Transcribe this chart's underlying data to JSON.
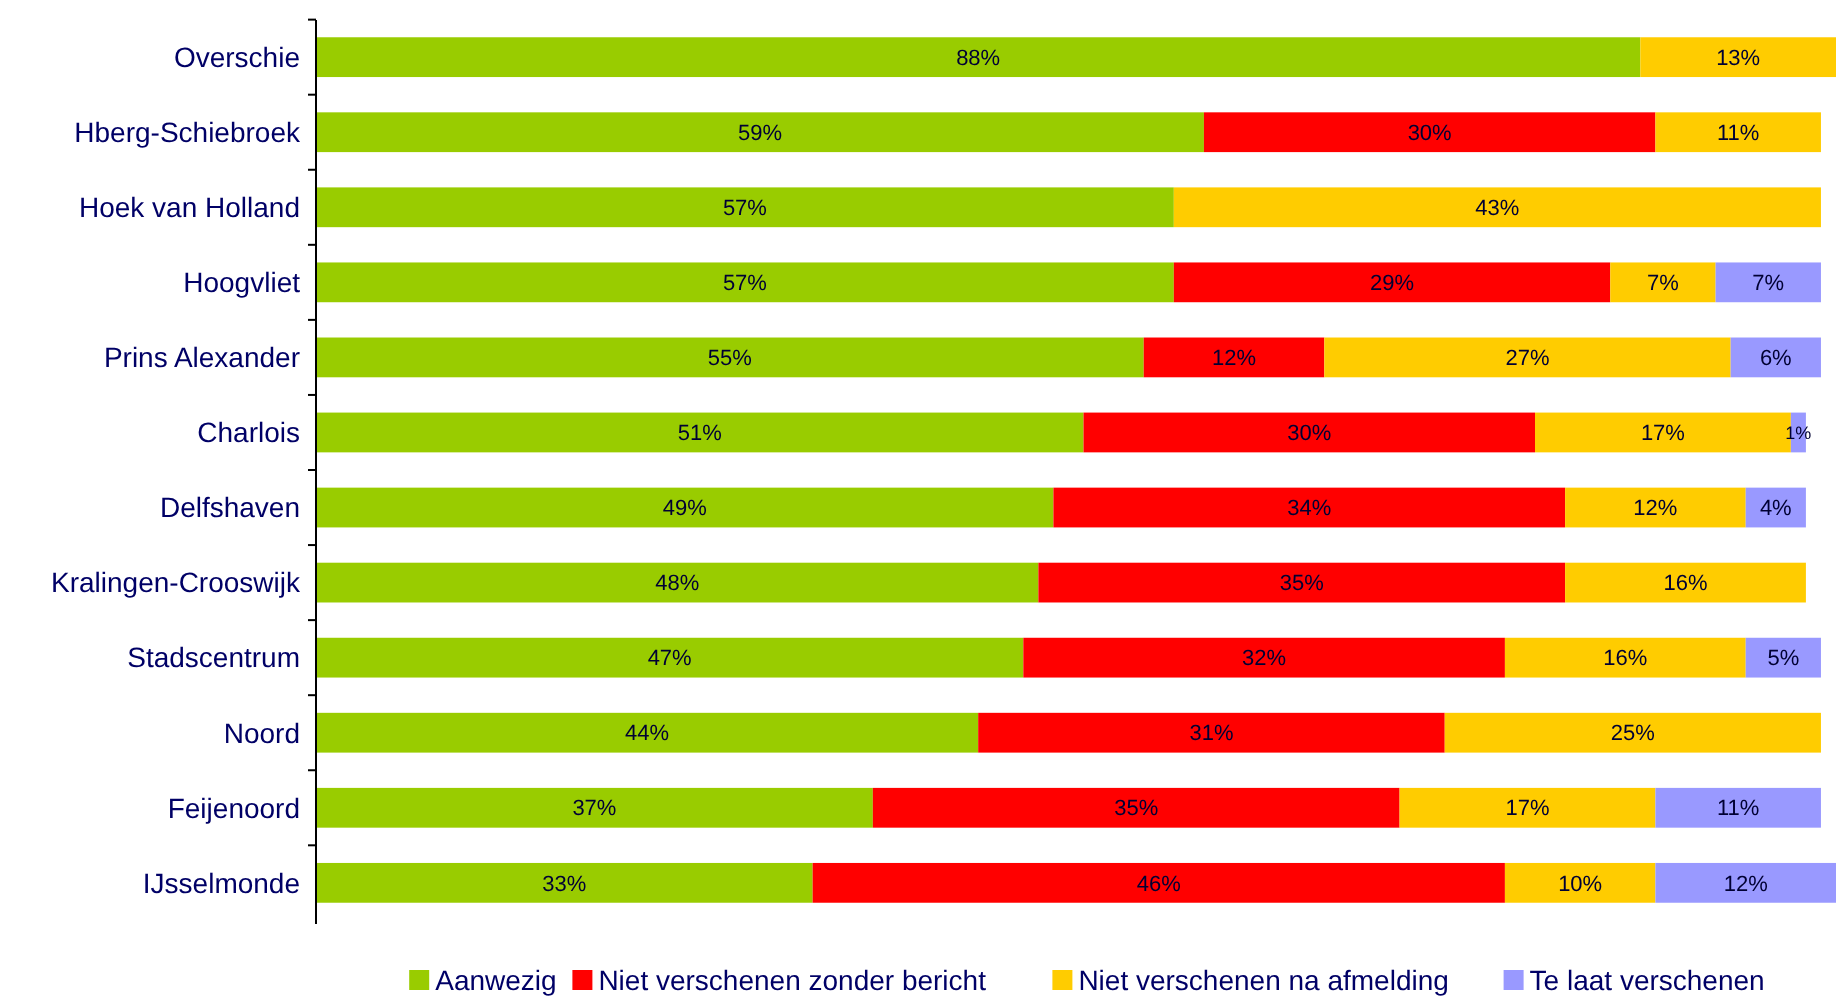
{
  "chart_data": {
    "type": "bar",
    "orientation": "horizontal",
    "stacked": true,
    "legend": "bottom",
    "categories": [
      "Overschie",
      "Hberg-Schiebroek",
      "Hoek van Holland",
      "Hoogvliet",
      "Prins Alexander",
      "Charlois",
      "Delfshaven",
      "Kralingen-Crooswijk",
      "Stadscentrum",
      "Noord",
      "Feijenoord",
      "IJsselmonde"
    ],
    "series": [
      {
        "name": "Aanwezig",
        "color": "#99cc00",
        "values": [
          88,
          59,
          57,
          57,
          55,
          51,
          49,
          48,
          47,
          44,
          37,
          33
        ],
        "value_labels": [
          "88%",
          "59%",
          "57%",
          "57%",
          "55%",
          "51%",
          "49%",
          "48%",
          "47%",
          "44%",
          "37%",
          "33%"
        ]
      },
      {
        "name": "Niet verschenen zonder bericht",
        "color": "#ff0000",
        "values": [
          null,
          30,
          null,
          29,
          12,
          30,
          34,
          35,
          32,
          31,
          35,
          46
        ],
        "value_labels": [
          null,
          "30%",
          null,
          "29%",
          "12%",
          "30%",
          "34%",
          "35%",
          "32%",
          "31%",
          "35%",
          "46%"
        ]
      },
      {
        "name": "Niet verschenen na afmelding",
        "color": "#ffcc00",
        "values": [
          13,
          11,
          43,
          7,
          27,
          17,
          12,
          16,
          16,
          25,
          17,
          10
        ],
        "value_labels": [
          "13%",
          "11%",
          "43%",
          "7%",
          "27%",
          "17%",
          "12%",
          "16%",
          "16%",
          "25%",
          "17%",
          "10%"
        ]
      },
      {
        "name": "Te laat verschenen",
        "color": "#9999ff",
        "values": [
          null,
          null,
          null,
          7,
          6,
          1,
          4,
          null,
          5,
          null,
          11,
          12
        ],
        "value_labels": [
          null,
          null,
          null,
          "7%",
          "6%",
          "1%",
          "4%",
          null,
          "5%",
          null,
          "11%",
          "12%"
        ]
      }
    ]
  }
}
